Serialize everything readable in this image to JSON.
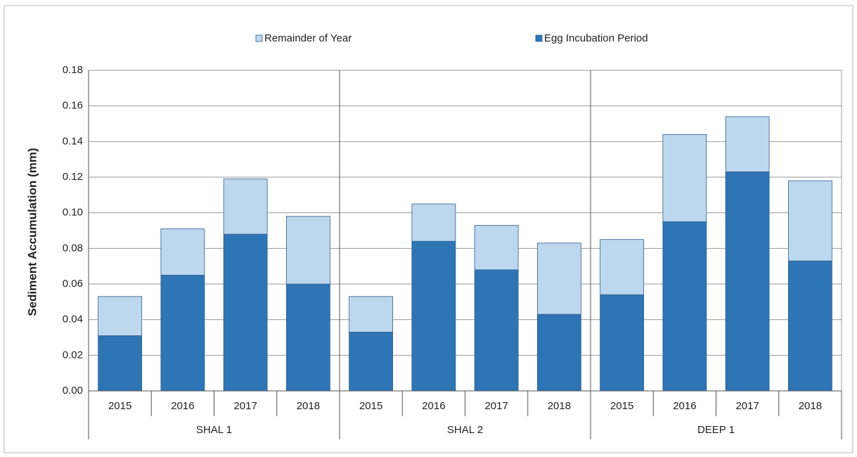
{
  "chart_data": {
    "type": "stacked_bar",
    "y_label": "Sediment Accumulation  (mm)",
    "categories": [
      "2015",
      "2016",
      "2017",
      "2018",
      "2015",
      "2016",
      "2017",
      "2018",
      "2015",
      "2016",
      "2017",
      "2018"
    ],
    "groups": [
      "SHAL 1",
      "SHAL 2",
      "DEEP 1"
    ],
    "series": [
      {
        "name": "Remainder of Year",
        "color": "#bdd7ee",
        "values": [
          0.022,
          0.026,
          0.031,
          0.038,
          0.02,
          0.021,
          0.025,
          0.04,
          0.031,
          0.049,
          0.031,
          0.045
        ]
      },
      {
        "name": "Egg Incubation Period",
        "color": "#2e75b6",
        "values": [
          0.031,
          0.065,
          0.088,
          0.06,
          0.033,
          0.084,
          0.068,
          0.043,
          0.054,
          0.095,
          0.123,
          0.073
        ]
      }
    ],
    "ylim": [
      0,
      0.18
    ],
    "yticks": [
      {
        "value": 0,
        "label": "0.00"
      },
      {
        "value": 0.02,
        "label": "0.02"
      },
      {
        "value": 0.04,
        "label": "0.04"
      },
      {
        "value": 0.06,
        "label": "0.06"
      },
      {
        "value": 0.08,
        "label": "0.08"
      },
      {
        "value": 0.1,
        "label": "0.10"
      },
      {
        "value": 0.12,
        "label": "0.12"
      },
      {
        "value": 0.14,
        "label": "0.14"
      },
      {
        "value": 0.16,
        "label": "0.16"
      },
      {
        "value": 0.18,
        "label": "0.18"
      }
    ],
    "grid": true,
    "legend": "top"
  }
}
